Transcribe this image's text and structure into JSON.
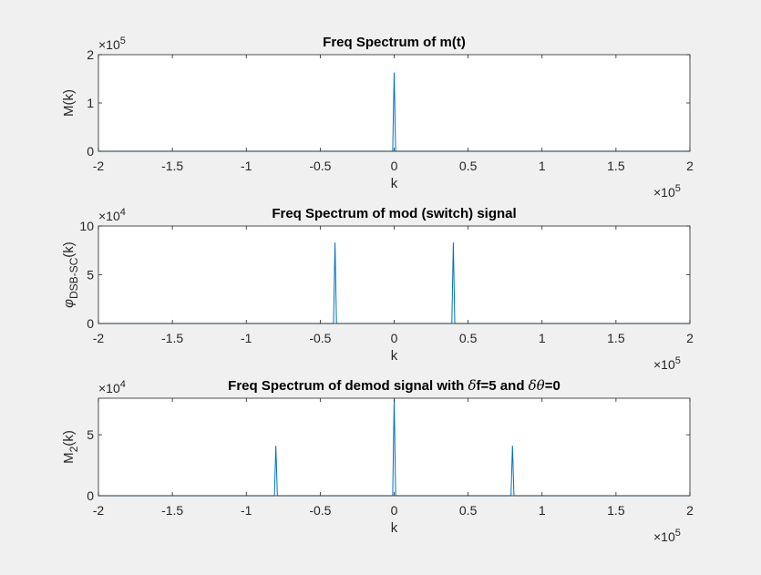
{
  "chart_data": [
    {
      "type": "line",
      "title": "Freq Spectrum of m(t)",
      "xlabel": "k",
      "ylabel": "M(k)",
      "xlim": [
        -200000,
        200000
      ],
      "ylim": [
        0,
        200000
      ],
      "x_ticks": [
        "-2",
        "-1.5",
        "-1",
        "-0.5",
        "0",
        "0.5",
        "1",
        "1.5",
        "2"
      ],
      "y_ticks": [
        "0",
        "1",
        "2"
      ],
      "x_exponent": "5",
      "y_exponent": "5",
      "series": [
        {
          "color": "#0072BD",
          "x": [
            -200000,
            -1000,
            0,
            1000,
            200000
          ],
          "y": [
            0,
            0,
            163000,
            0,
            0
          ]
        }
      ]
    },
    {
      "type": "line",
      "title": "Freq Spectrum of mod (switch) signal",
      "xlabel": "k",
      "ylabel": "φDSB-SC(k)",
      "ylabel_main": "φ",
      "ylabel_sub": "DSB-SC",
      "ylabel_tail": "(k)",
      "xlim": [
        -200000,
        200000
      ],
      "ylim": [
        0,
        100000
      ],
      "x_ticks": [
        "-2",
        "-1.5",
        "-1",
        "-0.5",
        "0",
        "0.5",
        "1",
        "1.5",
        "2"
      ],
      "y_ticks": [
        "0",
        "5",
        "10"
      ],
      "x_exponent": "5",
      "y_exponent": "4",
      "series": [
        {
          "color": "#0072BD",
          "x": [
            -200000,
            -41000,
            -40000,
            -39000,
            39000,
            40000,
            41000,
            200000
          ],
          "y": [
            0,
            0,
            83000,
            0,
            0,
            83000,
            0,
            0
          ]
        }
      ]
    },
    {
      "type": "line",
      "title": "Freq Spectrum of demod signal with δf=5 and δθ=0",
      "title_parts": [
        "Freq Spectrum of demod signal with ",
        "δ",
        "f=5 and ",
        "δθ",
        "=0"
      ],
      "xlabel": "k",
      "ylabel": "M2(k)",
      "ylabel_main": "M",
      "ylabel_sub": "2",
      "ylabel_tail": "(k)",
      "xlim": [
        -200000,
        200000
      ],
      "ylim": [
        0,
        80000
      ],
      "x_ticks": [
        "-2",
        "-1.5",
        "-1",
        "-0.5",
        "0",
        "0.5",
        "1",
        "1.5",
        "2"
      ],
      "y_ticks": [
        "0",
        "5"
      ],
      "x_exponent": "5",
      "y_exponent": "4",
      "series": [
        {
          "color": "#0072BD",
          "x": [
            -200000,
            -81000,
            -80000,
            -79000,
            -1000,
            0,
            1000,
            79000,
            80000,
            81000,
            200000
          ],
          "y": [
            0,
            0,
            41000,
            0,
            0,
            80000,
            0,
            0,
            41000,
            0,
            0
          ]
        }
      ]
    }
  ]
}
